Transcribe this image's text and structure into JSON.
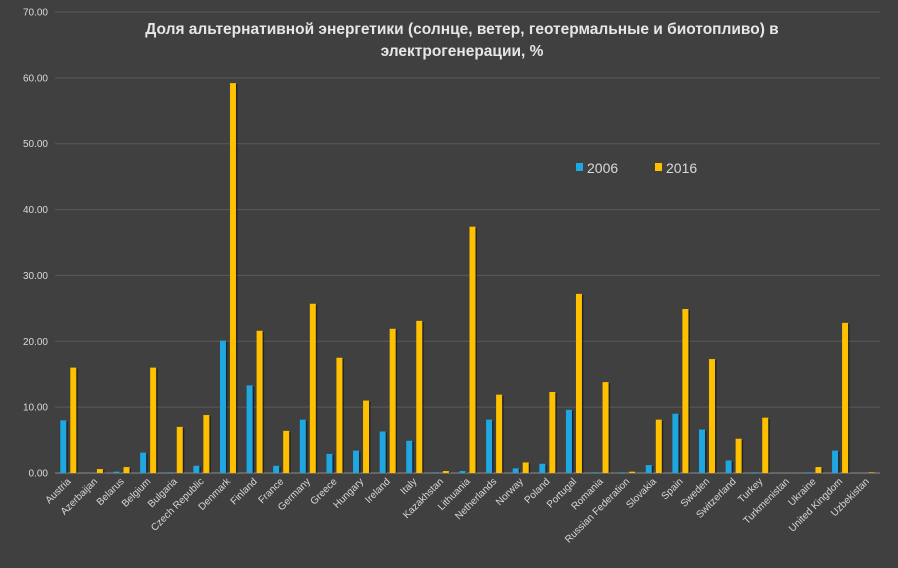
{
  "chart_data": {
    "type": "bar",
    "title_line1": "Доля альтернативной энергетики (солнце, ветер, геотермальные и биотопливо) в",
    "title_line2": "электрогенерации, %",
    "ylim": [
      0,
      70
    ],
    "yticks": [
      "0.00",
      "10.00",
      "20.00",
      "30.00",
      "40.00",
      "50.00",
      "60.00",
      "70.00"
    ],
    "grid": true,
    "legend_position": "top-right-inside",
    "categories": [
      "Austria",
      "Azerbaijan",
      "Belarus",
      "Belgium",
      "Bulgaria",
      "Czech Republic",
      "Denmark",
      "Finland",
      "France",
      "Germany",
      "Greece",
      "Hungary",
      "Ireland",
      "Italy",
      "Kazakhstan",
      "Lithuania",
      "Netherlands",
      "Norway",
      "Poland",
      "Portugal",
      "Romania",
      "Russian Federation",
      "Slovakia",
      "Spain",
      "Sweden",
      "Switzerland",
      "Turkey",
      "Turkmenistan",
      "Ukraine",
      "United Kingdom",
      "Uzbekistan"
    ],
    "series": [
      {
        "name": "2006",
        "color": "#1ea7e1",
        "values": [
          8.0,
          0.0,
          0.2,
          3.1,
          0.1,
          1.1,
          20.1,
          13.3,
          1.1,
          8.1,
          2.9,
          3.4,
          6.3,
          4.9,
          0.1,
          0.3,
          8.1,
          0.7,
          1.4,
          9.6,
          0.1,
          0.1,
          1.2,
          9.0,
          6.6,
          1.9,
          0.1,
          0.0,
          0.1,
          3.4,
          0.0
        ]
      },
      {
        "name": "2016",
        "color": "#ffc000",
        "values": [
          16.0,
          0.6,
          0.9,
          16.0,
          7.0,
          8.8,
          59.2,
          21.6,
          6.4,
          25.7,
          17.5,
          11.0,
          21.9,
          23.1,
          0.3,
          37.4,
          11.9,
          1.6,
          12.3,
          27.2,
          13.8,
          0.2,
          8.1,
          24.9,
          17.3,
          5.2,
          8.4,
          0.0,
          0.9,
          22.8,
          0.1
        ]
      }
    ]
  }
}
